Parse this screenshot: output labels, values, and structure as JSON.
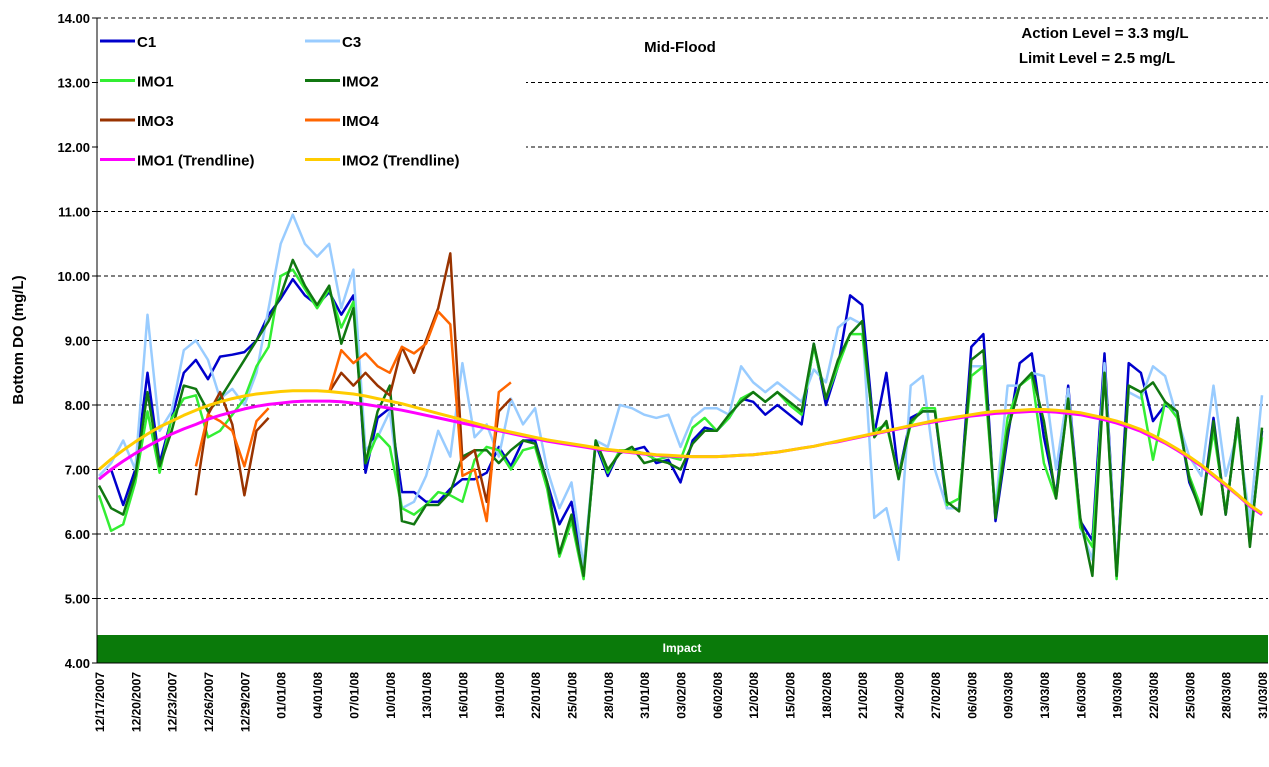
{
  "chart_data": {
    "type": "line",
    "annotations": {
      "mid_flood": "Mid-Flood",
      "action_level": "Action Level = 3.3 mg/L",
      "limit_level": "Limit Level = 2.5 mg/L",
      "impact": "Impact"
    },
    "y_label": "Bottom DO (mg/L)",
    "ylim": [
      4,
      14
    ],
    "yticks": [
      {
        "value": 4,
        "label": "4.00"
      },
      {
        "value": 5,
        "label": "5.00"
      },
      {
        "value": 6,
        "label": "6.00"
      },
      {
        "value": 7,
        "label": "7.00"
      },
      {
        "value": 8,
        "label": "8.00"
      },
      {
        "value": 9,
        "label": "9.00"
      },
      {
        "value": 10,
        "label": "10.00"
      },
      {
        "value": 11,
        "label": "11.00"
      },
      {
        "value": 12,
        "label": "12.00"
      },
      {
        "value": 13,
        "label": "13.00"
      },
      {
        "value": 14,
        "label": "14.00"
      }
    ],
    "grid": true,
    "legend": "top-left",
    "categories": [
      "12/17/2007",
      null,
      null,
      "12/20/2007",
      null,
      null,
      "12/23/2007",
      null,
      null,
      "12/26/2007",
      null,
      null,
      "12/29/2007",
      null,
      null,
      "01/01/08",
      null,
      null,
      "04/01/08",
      null,
      null,
      "07/01/08",
      null,
      null,
      "10/01/08",
      null,
      null,
      "13/01/08",
      null,
      null,
      "16/01/08",
      null,
      null,
      "19/01/08",
      null,
      null,
      "22/01/08",
      null,
      null,
      "25/01/08",
      null,
      null,
      "28/01/08",
      null,
      null,
      "31/01/08",
      null,
      null,
      "03/02/08",
      null,
      null,
      "06/02/08",
      null,
      null,
      "12/02/08",
      null,
      null,
      "15/02/08",
      null,
      null,
      "18/02/08",
      null,
      null,
      "21/02/08",
      null,
      null,
      "24/02/08",
      null,
      null,
      "27/02/08",
      null,
      null,
      "06/03/08",
      null,
      null,
      "09/03/08",
      null,
      null,
      "13/03/08",
      null,
      null,
      "16/03/08",
      null,
      null,
      "19/03/08",
      null,
      null,
      "22/03/08",
      null,
      null,
      "25/03/08",
      null,
      null,
      "28/03/08",
      null,
      null,
      "31/03/08"
    ],
    "series": [
      {
        "name": "C1",
        "color": "#0000cc",
        "width": 2.5,
        "values": [
          6.85,
          7.0,
          6.45,
          7.0,
          8.5,
          7.1,
          7.8,
          8.5,
          8.7,
          8.4,
          8.75,
          8.78,
          8.82,
          9.0,
          9.4,
          9.65,
          9.95,
          9.7,
          9.55,
          9.75,
          9.4,
          9.7,
          6.95,
          7.8,
          7.95,
          6.65,
          6.65,
          6.5,
          6.5,
          6.7,
          6.85,
          6.85,
          6.95,
          7.35,
          7.05,
          7.45,
          7.45,
          6.8,
          6.15,
          6.5,
          5.4,
          7.4,
          6.9,
          7.3,
          7.3,
          7.35,
          7.1,
          7.15,
          6.8,
          7.45,
          7.65,
          7.6,
          7.8,
          8.1,
          8.05,
          7.85,
          8.0,
          7.85,
          7.7,
          8.95,
          8.0,
          8.6,
          9.7,
          9.55,
          7.55,
          8.5,
          6.9,
          7.8,
          7.9,
          7.9,
          6.4,
          6.4,
          8.9,
          9.1,
          6.2,
          7.5,
          8.65,
          8.8,
          7.5,
          6.6,
          8.3,
          6.2,
          5.9,
          8.8,
          5.35,
          8.65,
          8.5,
          7.75,
          8.0,
          7.9,
          6.8,
          6.35,
          7.8,
          6.3,
          7.8,
          5.85,
          7.6
        ]
      },
      {
        "name": "C3",
        "color": "#99ccff",
        "width": 2.5,
        "values": [
          6.9,
          7.1,
          7.45,
          7.0,
          9.4,
          7.6,
          7.9,
          8.85,
          9.0,
          8.7,
          8.1,
          8.25,
          8.0,
          8.5,
          9.5,
          10.5,
          10.95,
          10.5,
          10.3,
          10.5,
          9.5,
          10.1,
          7.3,
          7.5,
          7.9,
          6.4,
          6.5,
          6.9,
          7.6,
          7.2,
          8.65,
          7.5,
          7.7,
          7.2,
          8.1,
          7.7,
          7.95,
          7.0,
          6.4,
          6.8,
          5.5,
          7.45,
          7.35,
          8.0,
          7.95,
          7.85,
          7.8,
          7.85,
          7.35,
          7.8,
          7.95,
          7.95,
          7.85,
          8.6,
          8.35,
          8.2,
          8.35,
          8.2,
          8.05,
          8.55,
          8.35,
          9.2,
          9.35,
          9.25,
          6.25,
          6.4,
          5.6,
          8.3,
          8.45,
          7.0,
          6.4,
          6.4,
          8.6,
          8.6,
          6.4,
          8.3,
          8.3,
          8.5,
          8.45,
          7.0,
          8.25,
          6.1,
          5.6,
          8.65,
          5.4,
          8.2,
          8.1,
          8.6,
          8.45,
          7.8,
          7.2,
          6.9,
          8.3,
          6.9,
          7.6,
          6.2,
          8.15
        ]
      },
      {
        "name": "IMO1",
        "color": "#33ee33",
        "width": 2.5,
        "values": [
          6.6,
          6.05,
          6.15,
          6.8,
          7.9,
          6.95,
          7.8,
          8.1,
          8.15,
          7.5,
          7.6,
          7.85,
          8.1,
          8.6,
          8.9,
          10.0,
          10.1,
          9.8,
          9.5,
          9.8,
          9.2,
          9.6,
          7.1,
          7.55,
          7.35,
          6.4,
          6.3,
          6.45,
          6.65,
          6.6,
          6.5,
          7.15,
          7.35,
          7.3,
          7.0,
          7.3,
          7.35,
          6.7,
          5.65,
          6.2,
          5.3,
          7.45,
          6.95,
          7.3,
          7.3,
          7.25,
          7.15,
          7.2,
          7.15,
          7.65,
          7.8,
          7.6,
          7.8,
          8.1,
          8.2,
          8.05,
          8.2,
          8.0,
          7.85,
          8.9,
          8.1,
          8.6,
          9.1,
          9.1,
          7.6,
          7.7,
          6.9,
          7.7,
          7.95,
          7.95,
          6.45,
          6.55,
          8.45,
          8.6,
          6.3,
          7.8,
          8.3,
          8.45,
          7.1,
          6.55,
          8.1,
          6.1,
          5.8,
          8.5,
          5.3,
          8.3,
          8.2,
          7.15,
          8.05,
          7.8,
          6.9,
          6.4,
          7.6,
          6.35,
          7.7,
          5.9,
          7.5
        ]
      },
      {
        "name": "IMO2",
        "color": "#117711",
        "width": 2.5,
        "values": [
          6.75,
          6.4,
          6.3,
          6.9,
          8.2,
          7.05,
          7.6,
          8.3,
          8.25,
          7.9,
          8.1,
          8.4,
          8.7,
          9.0,
          9.3,
          9.7,
          10.25,
          9.85,
          9.55,
          9.85,
          8.95,
          9.5,
          7.1,
          7.9,
          8.3,
          6.2,
          6.15,
          6.45,
          6.45,
          6.65,
          7.2,
          7.3,
          7.3,
          7.1,
          7.3,
          7.45,
          7.4,
          6.8,
          5.7,
          6.3,
          5.35,
          7.45,
          7.0,
          7.25,
          7.35,
          7.1,
          7.15,
          7.1,
          7.0,
          7.4,
          7.6,
          7.6,
          7.85,
          8.05,
          8.2,
          8.05,
          8.2,
          8.05,
          7.9,
          8.95,
          8.1,
          8.7,
          9.1,
          9.3,
          7.5,
          7.75,
          6.85,
          7.75,
          7.9,
          7.9,
          6.5,
          6.35,
          8.7,
          8.85,
          6.25,
          7.6,
          8.3,
          8.5,
          7.75,
          6.55,
          8.1,
          6.25,
          5.35,
          8.5,
          5.35,
          8.3,
          8.2,
          8.35,
          8.05,
          7.9,
          6.85,
          6.3,
          7.75,
          6.3,
          7.8,
          5.8,
          7.65
        ]
      },
      {
        "name": "IMO3",
        "color": "#993300",
        "width": 2.5,
        "values": [
          null,
          null,
          null,
          null,
          null,
          null,
          null,
          null,
          6.6,
          7.85,
          8.2,
          7.7,
          6.6,
          7.6,
          7.8,
          null,
          null,
          null,
          null,
          8.2,
          8.5,
          8.3,
          8.5,
          8.3,
          8.15,
          8.9,
          8.5,
          9.0,
          9.5,
          10.35,
          7.15,
          7.3,
          6.5,
          7.9,
          8.1,
          null,
          null,
          null,
          null,
          null,
          null,
          null,
          null,
          null,
          null,
          null,
          null,
          null,
          null,
          null,
          null,
          null,
          null,
          null,
          null,
          null,
          null,
          null,
          null,
          null,
          null,
          null,
          null,
          null,
          null,
          null,
          null,
          null,
          null,
          null,
          null,
          null,
          null,
          null,
          null,
          null,
          null,
          null,
          null,
          null,
          null,
          null,
          null,
          null,
          null,
          null,
          null,
          null,
          null,
          null,
          null,
          null,
          null,
          null,
          null,
          null,
          null
        ]
      },
      {
        "name": "IMO4",
        "color": "#ff6600",
        "width": 2.5,
        "values": [
          null,
          null,
          null,
          null,
          null,
          null,
          null,
          null,
          7.05,
          7.85,
          7.75,
          7.6,
          7.05,
          7.75,
          7.95,
          null,
          null,
          null,
          null,
          8.2,
          8.85,
          8.65,
          8.8,
          8.6,
          8.5,
          8.9,
          8.8,
          8.95,
          9.45,
          9.25,
          6.9,
          7.0,
          6.2,
          8.2,
          8.35,
          null,
          null,
          null,
          null,
          null,
          null,
          null,
          null,
          null,
          null,
          null,
          null,
          null,
          null,
          null,
          null,
          null,
          null,
          null,
          null,
          null,
          null,
          null,
          null,
          null,
          null,
          null,
          null,
          null,
          null,
          null,
          null,
          null,
          null,
          null,
          null,
          null,
          null,
          null,
          null,
          null,
          null,
          null,
          null,
          null,
          null,
          null,
          null,
          null,
          null,
          null,
          null,
          null,
          null,
          null,
          null,
          null,
          null,
          null,
          null,
          null,
          null
        ]
      },
      {
        "name": "IMO1 (Trendline)",
        "color": "#ff00ff",
        "width": 3,
        "values": [
          6.85,
          7.0,
          7.13,
          7.25,
          7.36,
          7.46,
          7.55,
          7.63,
          7.7,
          7.78,
          7.84,
          7.89,
          7.94,
          7.98,
          8.01,
          8.03,
          8.05,
          8.06,
          8.06,
          8.06,
          8.05,
          8.03,
          8.01,
          7.98,
          7.95,
          7.92,
          7.88,
          7.84,
          7.8,
          7.76,
          7.72,
          7.68,
          7.64,
          7.6,
          7.56,
          7.52,
          7.48,
          7.44,
          7.41,
          7.38,
          7.35,
          7.32,
          7.3,
          7.28,
          7.26,
          7.24,
          7.22,
          7.21,
          7.2,
          7.2,
          7.2,
          7.2,
          7.21,
          7.22,
          7.23,
          7.25,
          7.27,
          7.3,
          7.33,
          7.36,
          7.4,
          7.43,
          7.47,
          7.51,
          7.55,
          7.59,
          7.63,
          7.67,
          7.71,
          7.74,
          7.77,
          7.8,
          7.83,
          7.85,
          7.87,
          7.88,
          7.89,
          7.9,
          7.9,
          7.89,
          7.87,
          7.85,
          7.81,
          7.77,
          7.72,
          7.66,
          7.59,
          7.5,
          7.41,
          7.3,
          7.18,
          7.05,
          6.9,
          6.75,
          6.6,
          6.43,
          6.3
        ]
      },
      {
        "name": "IMO2 (Trendline)",
        "color": "#ffcc00",
        "width": 3,
        "values": [
          7.0,
          7.16,
          7.3,
          7.43,
          7.55,
          7.66,
          7.75,
          7.84,
          7.92,
          7.99,
          8.05,
          8.1,
          8.14,
          8.17,
          8.19,
          8.21,
          8.22,
          8.22,
          8.22,
          8.21,
          8.19,
          8.17,
          8.14,
          8.1,
          8.06,
          8.02,
          7.97,
          7.92,
          7.87,
          7.82,
          7.77,
          7.72,
          7.67,
          7.62,
          7.58,
          7.54,
          7.5,
          7.46,
          7.43,
          7.4,
          7.37,
          7.34,
          7.31,
          7.29,
          7.27,
          7.25,
          7.23,
          7.22,
          7.21,
          7.2,
          7.2,
          7.2,
          7.21,
          7.22,
          7.23,
          7.25,
          7.27,
          7.3,
          7.33,
          7.36,
          7.4,
          7.44,
          7.48,
          7.52,
          7.56,
          7.6,
          7.64,
          7.68,
          7.72,
          7.76,
          7.79,
          7.82,
          7.85,
          7.88,
          7.9,
          7.91,
          7.92,
          7.93,
          7.93,
          7.92,
          7.9,
          7.88,
          7.84,
          7.8,
          7.75,
          7.69,
          7.62,
          7.53,
          7.43,
          7.32,
          7.2,
          7.07,
          6.92,
          6.77,
          6.61,
          6.45,
          6.32
        ]
      }
    ]
  }
}
